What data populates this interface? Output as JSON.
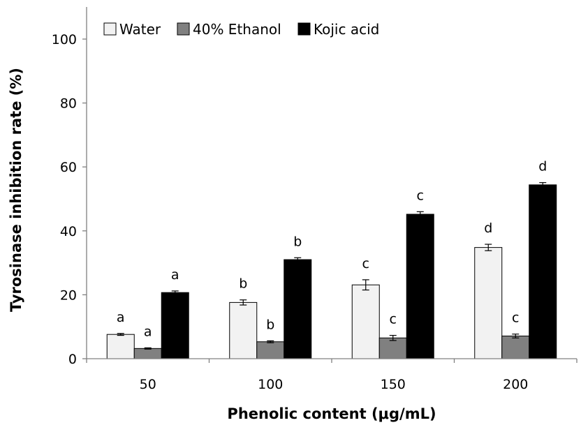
{
  "chart_data": {
    "type": "bar",
    "title": "",
    "xlabel": "Phenolic content (μg/mL)",
    "ylabel": "Tyrosinase inhibition rate (%)",
    "ylim": [
      0,
      100
    ],
    "yticks": [
      0,
      20,
      40,
      60,
      80,
      100
    ],
    "ytick_labels": [
      "0",
      "20",
      "40",
      "60",
      "80",
      "100"
    ],
    "categories": [
      "50",
      "100",
      "150",
      "200"
    ],
    "legend_position": "top-left",
    "grid": false,
    "series": [
      {
        "name": "Water",
        "color": "#f2f2f2",
        "values": [
          7.6,
          17.6,
          23.1,
          34.8
        ],
        "errors": [
          0.3,
          0.8,
          1.6,
          1.0
        ],
        "labels": [
          "a",
          "b",
          "c",
          "d"
        ]
      },
      {
        "name": "40% Ethanol",
        "color": "#808080",
        "values": [
          3.2,
          5.3,
          6.5,
          7.1
        ],
        "errors": [
          0.2,
          0.3,
          0.8,
          0.6
        ],
        "labels": [
          "a",
          "b",
          "c",
          "c"
        ]
      },
      {
        "name": "Kojic acid",
        "color": "#000000",
        "values": [
          20.7,
          31.0,
          45.2,
          54.4
        ],
        "errors": [
          0.5,
          0.6,
          0.8,
          0.7
        ],
        "labels": [
          "a",
          "b",
          "c",
          "d"
        ]
      }
    ]
  }
}
